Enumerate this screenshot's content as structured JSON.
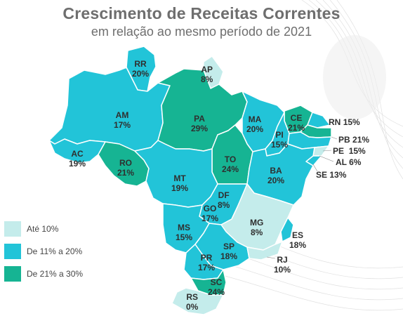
{
  "header": {
    "title": "Crescimento de Receitas Correntes",
    "subtitle": "em relação ao mesmo período de 2021"
  },
  "colors": {
    "low": "#c4eceb",
    "mid": "#22c4d8",
    "high": "#16b493",
    "border": "#ffffff"
  },
  "legend": [
    {
      "label": "Até 10%",
      "color": "#c4eceb"
    },
    {
      "label": "De 11% a 20%",
      "color": "#22c4d8"
    },
    {
      "label": "De 21% a 30%",
      "color": "#16b493"
    }
  ],
  "states": {
    "rr": {
      "sigla": "RR",
      "valor": "20%"
    },
    "ap": {
      "sigla": "AP",
      "valor": "8%"
    },
    "am": {
      "sigla": "AM",
      "valor": "17%"
    },
    "pa": {
      "sigla": "PA",
      "valor": "29%"
    },
    "ma": {
      "sigla": "MA",
      "valor": "20%"
    },
    "ce": {
      "sigla": "CE",
      "valor": "21%"
    },
    "rn": {
      "sigla": "RN",
      "valor": "15%"
    },
    "pb": {
      "sigla": "PB",
      "valor": "21%"
    },
    "pe": {
      "sigla": "PE",
      "valor": "15%"
    },
    "al": {
      "sigla": "AL",
      "valor": "6%"
    },
    "se": {
      "sigla": "SE",
      "valor": "13%"
    },
    "pi": {
      "sigla": "PI",
      "valor": "15%"
    },
    "ac": {
      "sigla": "AC",
      "valor": "19%"
    },
    "ro": {
      "sigla": "RO",
      "valor": "21%"
    },
    "to": {
      "sigla": "TO",
      "valor": "24%"
    },
    "ba": {
      "sigla": "BA",
      "valor": "20%"
    },
    "mt": {
      "sigla": "MT",
      "valor": "19%"
    },
    "df": {
      "sigla": "DF",
      "valor": "8%"
    },
    "go": {
      "sigla": "GO",
      "valor": "17%"
    },
    "mg": {
      "sigla": "MG",
      "valor": "8%"
    },
    "ms": {
      "sigla": "MS",
      "valor": "15%"
    },
    "es": {
      "sigla": "ES",
      "valor": "18%"
    },
    "sp": {
      "sigla": "SP",
      "valor": "18%"
    },
    "rj": {
      "sigla": "RJ",
      "valor": "10%"
    },
    "pr": {
      "sigla": "PR",
      "valor": "17%"
    },
    "sc": {
      "sigla": "SC",
      "valor": "24%"
    },
    "rs": {
      "sigla": "RS",
      "valor": "0%"
    }
  }
}
